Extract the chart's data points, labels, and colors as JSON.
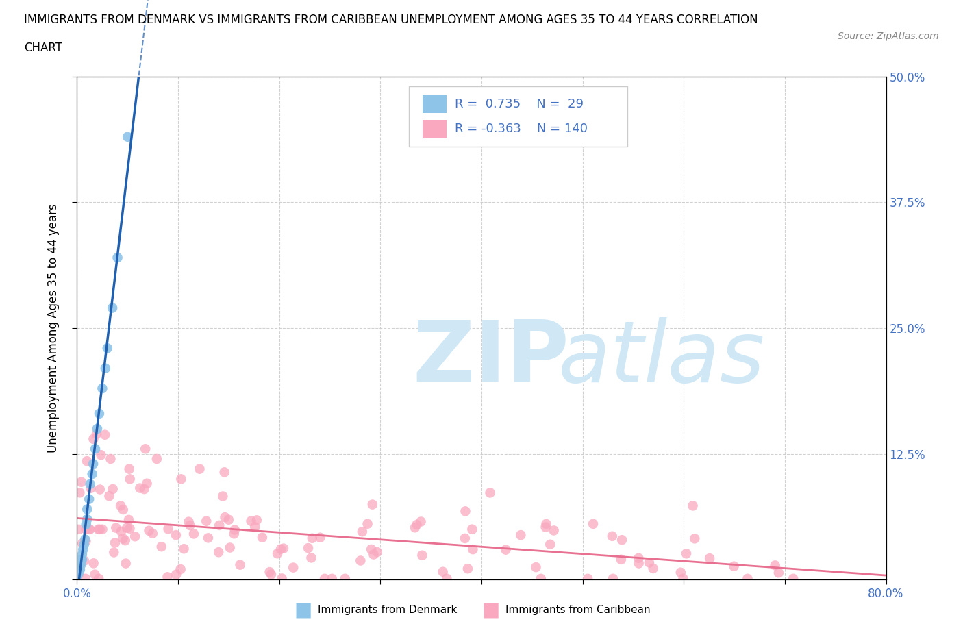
{
  "title_line1": "IMMIGRANTS FROM DENMARK VS IMMIGRANTS FROM CARIBBEAN UNEMPLOYMENT AMONG AGES 35 TO 44 YEARS CORRELATION",
  "title_line2": "CHART",
  "source_text": "Source: ZipAtlas.com",
  "ylabel": "Unemployment Among Ages 35 to 44 years",
  "xlim": [
    0.0,
    0.8
  ],
  "ylim": [
    0.0,
    0.5
  ],
  "xticks": [
    0.0,
    0.1,
    0.2,
    0.3,
    0.4,
    0.5,
    0.6,
    0.7,
    0.8
  ],
  "yticks": [
    0.0,
    0.125,
    0.25,
    0.375,
    0.5
  ],
  "denmark_R": 0.735,
  "denmark_N": 29,
  "caribbean_R": -0.363,
  "caribbean_N": 140,
  "denmark_color": "#8dc4e8",
  "caribbean_color": "#f9a8c0",
  "denmark_line_color": "#2060b0",
  "caribbean_line_color": "#e87090",
  "watermark_color": "#d0e8f5",
  "background_color": "#ffffff",
  "grid_color": "#cccccc",
  "tick_label_color": "#4472c4",
  "legend_border_color": "#cccccc",
  "title_color": "#000000",
  "source_color": "#888888"
}
